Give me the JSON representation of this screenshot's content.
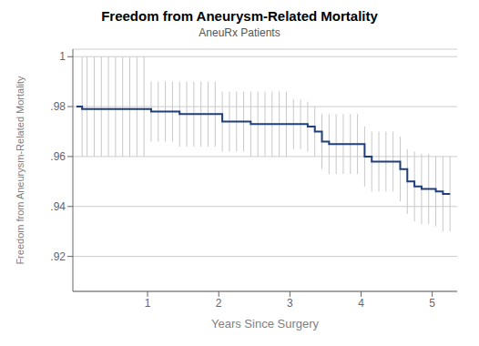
{
  "chart_data": {
    "type": "line",
    "title": "Freedom from Aneurysm-Related Mortality",
    "subtitle": "AneuRx Patients",
    "xlabel": "Years Since Surgery",
    "ylabel": "Freedom from Aneurysm-Related Mortality",
    "xlim": [
      -0.05,
      5.35
    ],
    "xticks": [
      1,
      2,
      3,
      4,
      5
    ],
    "ylim": [
      0.906,
      1.003
    ],
    "yticks": [
      {
        "value": 0.92,
        "label": ".92"
      },
      {
        "value": 0.94,
        "label": ".94"
      },
      {
        "value": 0.96,
        "label": ".96"
      },
      {
        "value": 0.98,
        "label": ".98"
      },
      1
    ],
    "grid": "y",
    "series": [
      {
        "type": "interval",
        "color": "#c8c8c8",
        "x": [
          0.08,
          0.15,
          0.25,
          0.35,
          0.45,
          0.55,
          0.65,
          0.75,
          0.85,
          0.95,
          1.05,
          1.15,
          1.25,
          1.35,
          1.45,
          1.55,
          1.65,
          1.75,
          1.85,
          1.95,
          2.05,
          2.15,
          2.25,
          2.35,
          2.45,
          2.55,
          2.65,
          2.75,
          2.85,
          2.95,
          3.05,
          3.15,
          3.25,
          3.35,
          3.45,
          3.55,
          3.65,
          3.75,
          3.85,
          3.95,
          4.05,
          4.15,
          4.25,
          4.35,
          4.45,
          4.55,
          4.65,
          4.75,
          4.85,
          4.95,
          5.05,
          5.15,
          5.25
        ],
        "upper": [
          1.0,
          1.0,
          1.0,
          1.0,
          1.0,
          1.0,
          1.0,
          1.0,
          1.0,
          1.0,
          0.99,
          0.99,
          0.99,
          0.99,
          0.99,
          0.99,
          0.99,
          0.99,
          0.99,
          0.99,
          0.986,
          0.986,
          0.986,
          0.986,
          0.986,
          0.986,
          0.986,
          0.986,
          0.986,
          0.986,
          0.983,
          0.983,
          0.982,
          0.98,
          0.977,
          0.977,
          0.977,
          0.977,
          0.977,
          0.977,
          0.972,
          0.97,
          0.97,
          0.97,
          0.97,
          0.968,
          0.963,
          0.962,
          0.961,
          0.961,
          0.96,
          0.96,
          0.96
        ],
        "lower": [
          0.96,
          0.96,
          0.96,
          0.96,
          0.96,
          0.96,
          0.96,
          0.96,
          0.96,
          0.96,
          0.966,
          0.966,
          0.966,
          0.966,
          0.964,
          0.964,
          0.964,
          0.964,
          0.964,
          0.964,
          0.962,
          0.962,
          0.962,
          0.962,
          0.96,
          0.96,
          0.96,
          0.96,
          0.96,
          0.96,
          0.963,
          0.963,
          0.962,
          0.96,
          0.955,
          0.953,
          0.953,
          0.953,
          0.953,
          0.953,
          0.948,
          0.946,
          0.946,
          0.946,
          0.946,
          0.942,
          0.937,
          0.934,
          0.933,
          0.933,
          0.932,
          0.93,
          0.93
        ]
      },
      {
        "type": "line",
        "line_style": "step",
        "color": "#1f3e7a",
        "x": [
          0.0,
          0.08,
          0.15,
          0.25,
          0.35,
          0.45,
          0.55,
          0.65,
          0.75,
          0.85,
          0.95,
          1.05,
          1.15,
          1.25,
          1.35,
          1.45,
          1.55,
          1.65,
          1.75,
          1.85,
          1.95,
          2.05,
          2.15,
          2.25,
          2.35,
          2.45,
          2.55,
          2.65,
          2.75,
          2.85,
          2.95,
          3.05,
          3.15,
          3.25,
          3.35,
          3.45,
          3.55,
          3.65,
          3.75,
          3.85,
          3.95,
          4.05,
          4.15,
          4.25,
          4.35,
          4.45,
          4.55,
          4.65,
          4.75,
          4.85,
          4.95,
          5.05,
          5.15,
          5.25
        ],
        "values": [
          0.98,
          0.979,
          0.979,
          0.979,
          0.979,
          0.979,
          0.979,
          0.979,
          0.979,
          0.979,
          0.979,
          0.978,
          0.978,
          0.978,
          0.978,
          0.977,
          0.977,
          0.977,
          0.977,
          0.977,
          0.977,
          0.974,
          0.974,
          0.974,
          0.974,
          0.973,
          0.973,
          0.973,
          0.973,
          0.973,
          0.973,
          0.973,
          0.973,
          0.972,
          0.97,
          0.966,
          0.965,
          0.965,
          0.965,
          0.965,
          0.965,
          0.96,
          0.958,
          0.958,
          0.958,
          0.958,
          0.955,
          0.95,
          0.948,
          0.947,
          0.947,
          0.946,
          0.945,
          0.945
        ]
      }
    ]
  }
}
